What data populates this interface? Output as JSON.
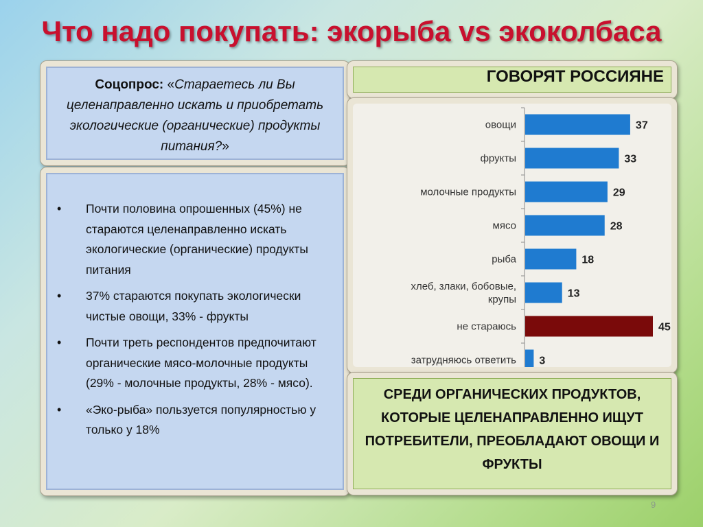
{
  "slide": {
    "title": "Что надо покупать: экорыба vs экоколбаса",
    "page_number": "9"
  },
  "survey": {
    "label": "Соцопрос:",
    "open_quote": " «",
    "question": "Стараетесь ли Вы целенаправленно искать и приобретать экологические (органические) продукты питания?",
    "close_quote": "»"
  },
  "bullets": [
    "Почти половина опрошенных (45%) не стараются целенаправленно искать экологические (органические) продукты питания",
    "37% стараются покупать экологически чистые овощи, 33% - фрукты",
    "Почти треть респондентов предпочитают органические мясо-молочные продукты (29% - молочные продукты, 28%  - мясо).",
    "«Эко-рыба» пользуется популярностью у только у 18%"
  ],
  "chart_header": "ГОВОРЯТ РОССИЯНЕ",
  "summary": "СРЕДИ ОРГАНИЧЕСКИХ ПРОДУКТОВ, КОТОРЫЕ ЦЕЛЕНАПРАВЛЕННО ИЩУТ ПОТРЕБИТЕЛИ, ПРЕОБЛАДАЮТ ОВОЩИ И ФРУКТЫ",
  "chart_data": {
    "type": "bar",
    "orientation": "horizontal",
    "categories": [
      [
        "овощи"
      ],
      [
        "фрукты"
      ],
      [
        "молочные продукты"
      ],
      [
        "мясо"
      ],
      [
        "рыба"
      ],
      [
        "хлеб, злаки, бобовые,",
        "крупы"
      ],
      [
        "не стараюсь"
      ],
      [
        "затрудняюсь ответить"
      ]
    ],
    "values": [
      37,
      33,
      29,
      28,
      18,
      13,
      45,
      3
    ],
    "bar_colors": [
      "#1f7bd0",
      "#1f7bd0",
      "#1f7bd0",
      "#1f7bd0",
      "#1f7bd0",
      "#1f7bd0",
      "#7a0a0a",
      "#1f7bd0"
    ],
    "xlim": [
      0,
      45
    ],
    "data_labels": true,
    "grid": false,
    "legend": "none"
  }
}
